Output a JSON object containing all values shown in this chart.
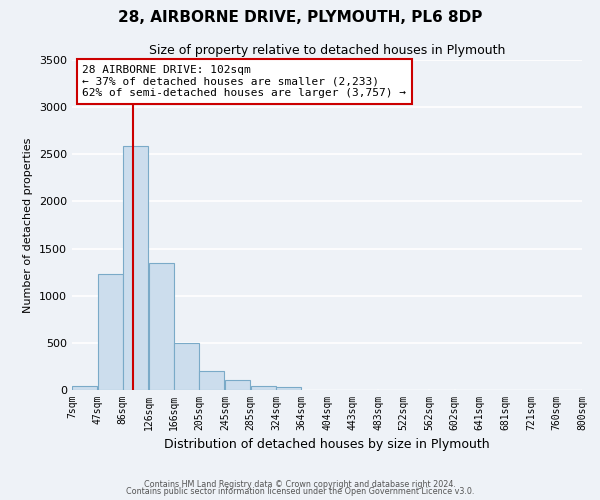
{
  "title": "28, AIRBORNE DRIVE, PLYMOUTH, PL6 8DP",
  "subtitle": "Size of property relative to detached houses in Plymouth",
  "xlabel": "Distribution of detached houses by size in Plymouth",
  "ylabel": "Number of detached properties",
  "bar_color": "#ccdded",
  "bar_edge_color": "#7aaac8",
  "background_color": "#eef2f7",
  "grid_color": "#ffffff",
  "bin_labels": [
    "7sqm",
    "47sqm",
    "86sqm",
    "126sqm",
    "166sqm",
    "205sqm",
    "245sqm",
    "285sqm",
    "324sqm",
    "364sqm",
    "404sqm",
    "443sqm",
    "483sqm",
    "522sqm",
    "562sqm",
    "602sqm",
    "641sqm",
    "681sqm",
    "721sqm",
    "760sqm",
    "800sqm"
  ],
  "bin_values": [
    40,
    1230,
    2590,
    1350,
    500,
    200,
    110,
    45,
    35,
    5,
    0,
    0,
    0,
    0,
    0,
    0,
    0,
    0,
    0,
    0
  ],
  "ylim": [
    0,
    3500
  ],
  "yticks": [
    0,
    500,
    1000,
    1500,
    2000,
    2500,
    3000,
    3500
  ],
  "property_line_color": "#cc0000",
  "annotation_line1": "28 AIRBORNE DRIVE: 102sqm",
  "annotation_line2": "← 37% of detached houses are smaller (2,233)",
  "annotation_line3": "62% of semi-detached houses are larger (3,757) →",
  "annotation_box_color": "#ffffff",
  "annotation_box_edge_color": "#cc0000",
  "footer1": "Contains HM Land Registry data © Crown copyright and database right 2024.",
  "footer2": "Contains public sector information licensed under the Open Government Licence v3.0.",
  "bin_width": 39,
  "bin_starts": [
    7,
    47,
    86,
    126,
    166,
    205,
    245,
    285,
    324,
    364,
    404,
    443,
    483,
    522,
    562,
    602,
    641,
    681,
    721,
    760
  ],
  "xmin": 7,
  "xmax": 800,
  "property_x": 102
}
